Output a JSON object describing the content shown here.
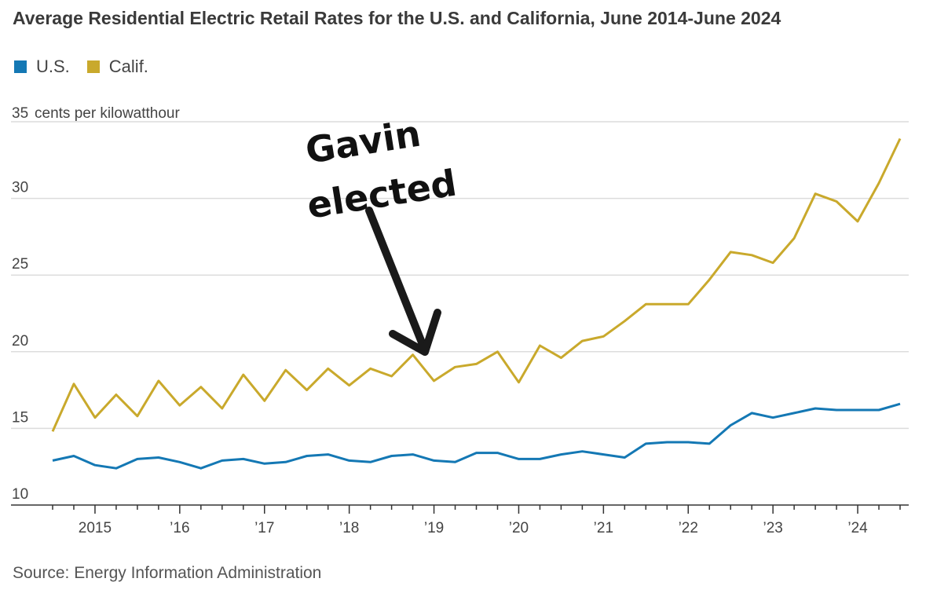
{
  "title": "Average Residential Electric Retail Rates for the U.S. and California, June 2014-June 2024",
  "source": "Source: Energy Information Administration",
  "legend": [
    {
      "label": "U.S.",
      "color": "#1478b4"
    },
    {
      "label": "Calif.",
      "color": "#c9a92c"
    }
  ],
  "annotation": {
    "line1": "Gavin",
    "line2": "elected"
  },
  "chart_data": {
    "type": "line",
    "ylabel": "cents per kilowatthour",
    "ylim": [
      10,
      35
    ],
    "yticks": [
      {
        "value": 35,
        "label": "35"
      },
      {
        "value": 30,
        "label": "30"
      },
      {
        "value": 25,
        "label": "25"
      },
      {
        "value": 20,
        "label": "20"
      },
      {
        "value": 15,
        "label": "15"
      },
      {
        "value": 10,
        "label": "10"
      }
    ],
    "xticks": [
      "2015",
      "’16",
      "’17",
      "’18",
      "’19",
      "’20",
      "’21",
      "’22",
      "’23",
      "’24"
    ],
    "x": [
      "2014-06",
      "2014-09",
      "2014-12",
      "2015-03",
      "2015-06",
      "2015-09",
      "2015-12",
      "2016-03",
      "2016-06",
      "2016-09",
      "2016-12",
      "2017-03",
      "2017-06",
      "2017-09",
      "2017-12",
      "2018-03",
      "2018-06",
      "2018-09",
      "2018-12",
      "2019-03",
      "2019-06",
      "2019-09",
      "2019-12",
      "2020-03",
      "2020-06",
      "2020-09",
      "2020-12",
      "2021-03",
      "2021-06",
      "2021-09",
      "2021-12",
      "2022-03",
      "2022-06",
      "2022-09",
      "2022-12",
      "2023-03",
      "2023-06",
      "2023-09",
      "2023-12",
      "2024-03",
      "2024-06"
    ],
    "series": [
      {
        "name": "U.S.",
        "color": "#1478b4",
        "values": [
          12.9,
          13.2,
          12.6,
          12.4,
          13.0,
          13.1,
          12.8,
          12.4,
          12.9,
          13.0,
          12.7,
          12.8,
          13.2,
          13.3,
          12.9,
          12.8,
          13.2,
          13.3,
          12.9,
          12.8,
          13.4,
          13.4,
          13.0,
          13.0,
          13.3,
          13.5,
          13.3,
          13.1,
          14.0,
          14.1,
          14.1,
          14.0,
          15.2,
          16.0,
          15.7,
          16.0,
          16.3,
          16.2,
          16.2,
          16.2,
          16.6
        ]
      },
      {
        "name": "Calif.",
        "color": "#c9a92c",
        "values": [
          14.8,
          17.9,
          15.7,
          17.2,
          15.8,
          18.1,
          16.5,
          17.7,
          16.3,
          18.5,
          16.8,
          18.8,
          17.5,
          18.9,
          17.8,
          18.9,
          18.4,
          19.8,
          18.1,
          19.0,
          19.2,
          20.0,
          18.0,
          20.4,
          19.6,
          20.7,
          21.0,
          22.0,
          23.1,
          23.1,
          23.1,
          24.7,
          26.5,
          26.3,
          25.8,
          27.4,
          30.3,
          29.8,
          28.5,
          31.0,
          33.9
        ]
      }
    ]
  }
}
